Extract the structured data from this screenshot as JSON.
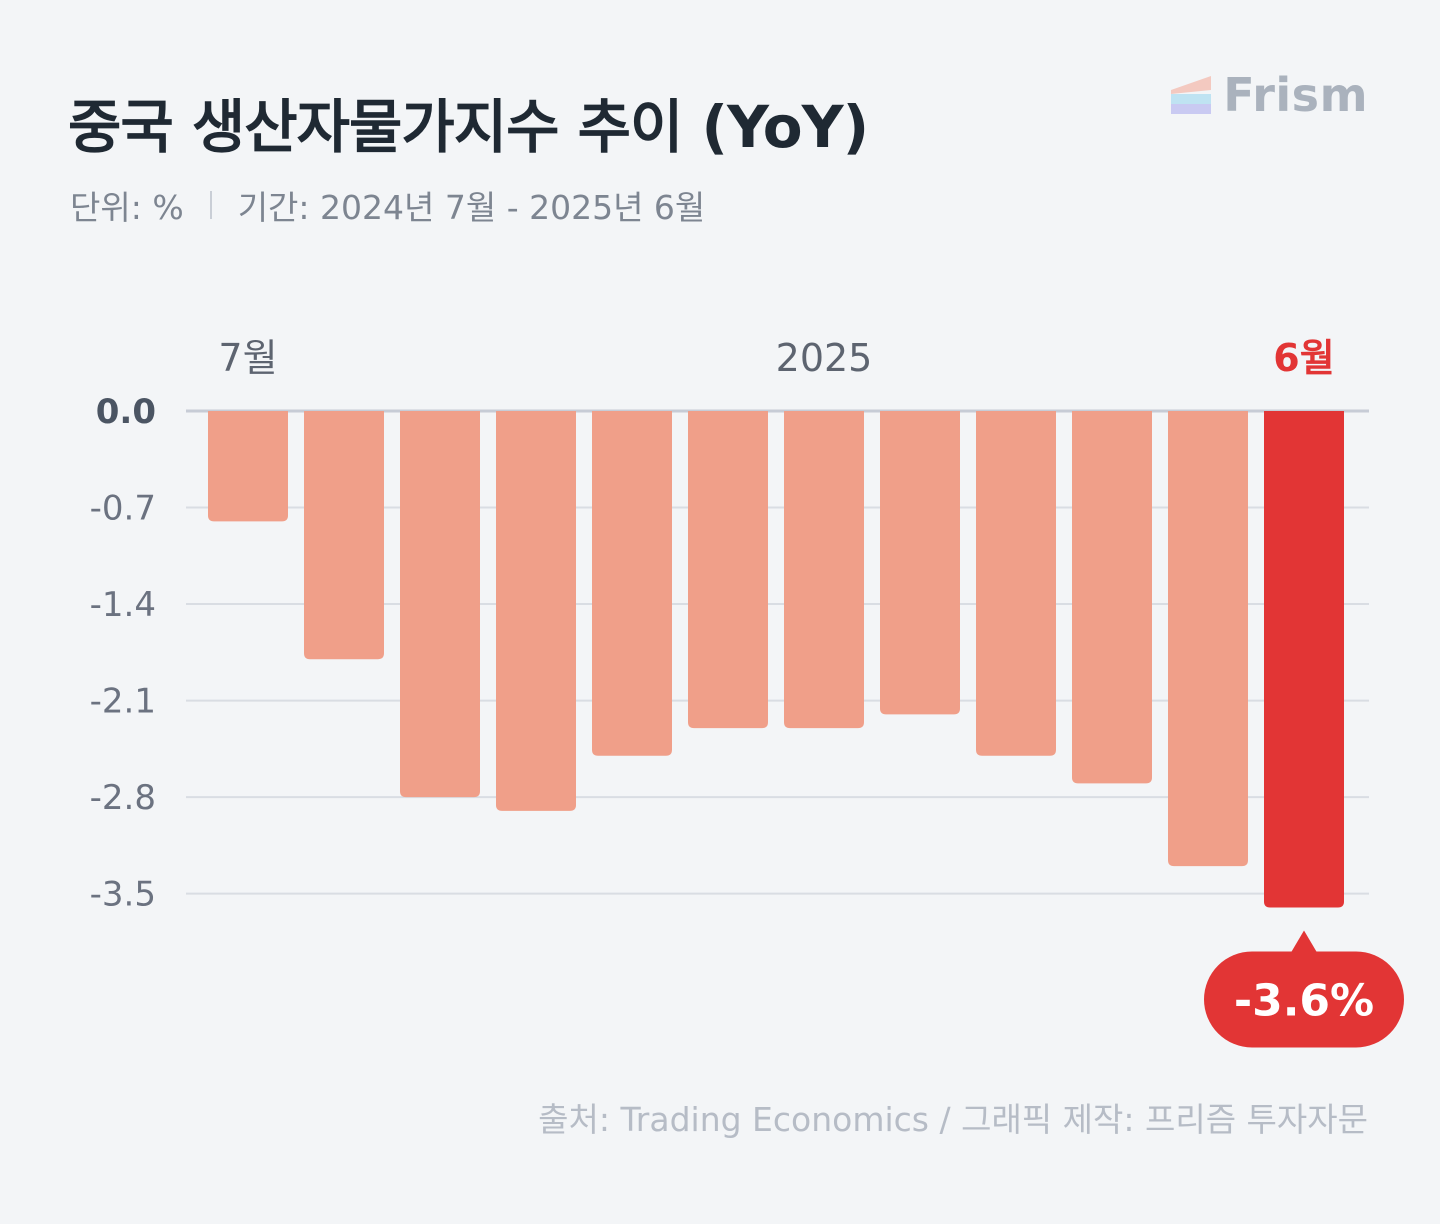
{
  "header": {
    "title": "중국 생산자물가지수 추이 (YoY)",
    "unit_text": "단위: %",
    "period_text": "기간: 2024년 7월 - 2025년 6월",
    "brand": "Frism"
  },
  "footer": {
    "source": "출처: Trading Economics / 그래픽 제작: 프리즘 투자자문"
  },
  "colors": {
    "bar": "#f09f89",
    "highlight": "#e23535",
    "grid": "#d9dde3",
    "baseline": "#c7ccd6",
    "tick": "#6b7280",
    "tick_zero": "#4b5563",
    "period_label": "#5d6470"
  },
  "chart_data": {
    "type": "bar",
    "title": "중국 생산자물가지수 추이 (YoY)",
    "unit": "%",
    "values": [
      -0.8,
      -1.8,
      -2.8,
      -2.9,
      -2.5,
      -2.3,
      -2.3,
      -2.2,
      -2.5,
      -2.7,
      -3.3,
      -3.6
    ],
    "period_labels": [
      {
        "index": 0,
        "text": "7월"
      },
      {
        "index": 6,
        "text": "2025"
      },
      {
        "index": 11,
        "text": "6월",
        "highlight": true
      }
    ],
    "yticks": [
      "0.0",
      "-0.7",
      "-1.4",
      "-2.1",
      "-2.8",
      "-3.5"
    ],
    "ytick_values": [
      0,
      -0.7,
      -1.4,
      -2.1,
      -2.8,
      -3.5
    ],
    "ylim": [
      -3.6,
      0
    ],
    "highlight_index": 11,
    "callout": "-3.6%",
    "grid": true
  }
}
